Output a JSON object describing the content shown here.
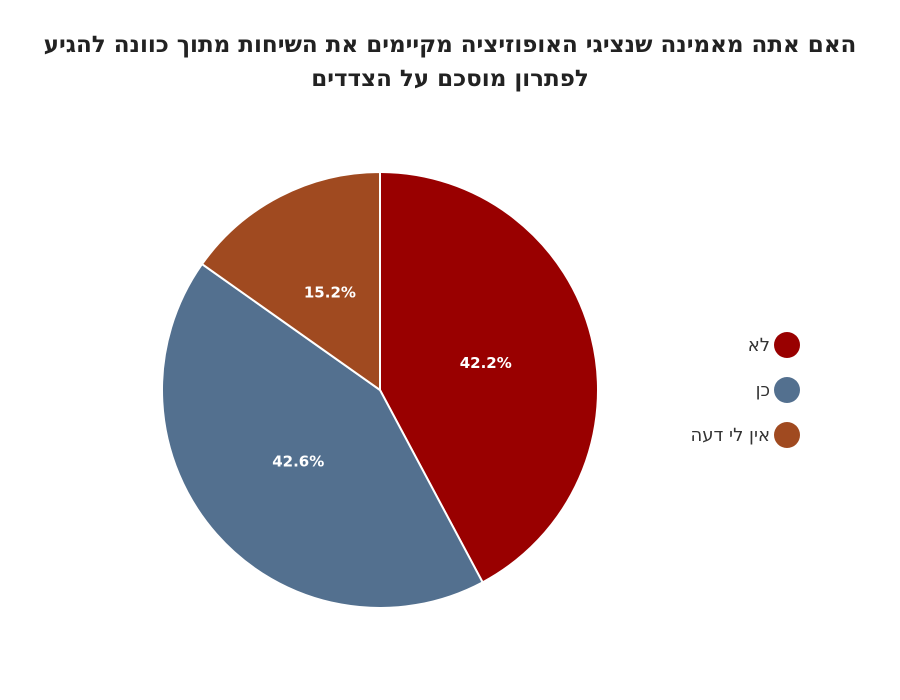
{
  "chart_data": {
    "type": "pie",
    "title": "האם אתה מאמינה שנציגי האופוזיציה מקיימים את השיחות מתוך כוונה להגיע לפתרון מוסכם על הצדדים",
    "slices": [
      {
        "label": "לא",
        "value": 42.2,
        "display": "42.2%",
        "color": "#990000"
      },
      {
        "label": "כן",
        "value": 42.6,
        "display": "42.6%",
        "color": "#53708f"
      },
      {
        "label": "אין לי דעה",
        "value": 15.2,
        "display": "15.2%",
        "color": "#a04a20"
      }
    ],
    "start_angle_deg": 0,
    "direction": "clockwise",
    "legend_position": "right"
  }
}
